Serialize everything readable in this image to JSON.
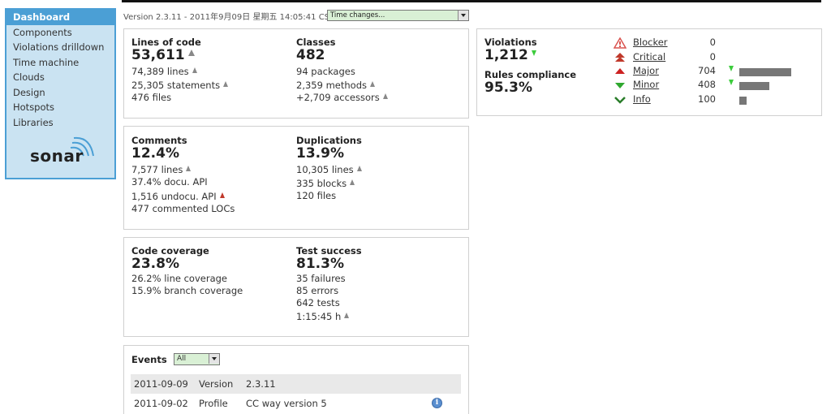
{
  "sidebar": {
    "items": [
      {
        "label": "Dashboard"
      },
      {
        "label": "Components"
      },
      {
        "label": "Violations drilldown"
      },
      {
        "label": "Time machine"
      },
      {
        "label": "Clouds"
      },
      {
        "label": "Design"
      },
      {
        "label": "Hotspots"
      },
      {
        "label": "Libraries"
      }
    ],
    "logo_text": "sonar"
  },
  "header": {
    "version_line": "Version 2.3.11 - 2011年9月09日 星期五 14:05:41 CST -",
    "time_select_value": "Time changes..."
  },
  "size": {
    "loc_label": "Lines of code",
    "loc_value": "53,611",
    "lines": "74,389 lines",
    "statements": "25,305 statements",
    "files": "476 files",
    "classes_label": "Classes",
    "classes_value": "482",
    "packages": "94 packages",
    "methods": "2,359 methods",
    "accessors": "+2,709 accessors"
  },
  "comments": {
    "comments_label": "Comments",
    "comments_value": "12.4%",
    "comment_lines": "7,577 lines",
    "docu_api": "37.4% docu. API",
    "undocu_api": "1,516 undocu. API",
    "commented_locs": "477 commented LOCs",
    "dup_label": "Duplications",
    "dup_value": "13.9%",
    "dup_lines": "10,305 lines",
    "dup_blocks": "335 blocks",
    "dup_files": "120 files"
  },
  "coverage": {
    "cov_label": "Code coverage",
    "cov_value": "23.8%",
    "line_cov": "26.2% line coverage",
    "branch_cov": "15.9% branch coverage",
    "test_label": "Test success",
    "test_value": "81.3%",
    "failures": "35 failures",
    "errors": "85 errors",
    "tests": "642 tests",
    "duration": "1:15:45 h"
  },
  "violations": {
    "label": "Violations",
    "value": "1,212",
    "compliance_label": "Rules compliance",
    "compliance_value": "95.3%",
    "severities": [
      {
        "name": "Blocker",
        "count": "0",
        "bar": 0,
        "color": "#d9534f"
      },
      {
        "name": "Critical",
        "count": "0",
        "bar": 0,
        "color": "#c0392b"
      },
      {
        "name": "Major",
        "count": "704",
        "bar": 1.0,
        "color": "#cc2222"
      },
      {
        "name": "Minor",
        "count": "408",
        "bar": 0.58,
        "color": "#2fa82f"
      },
      {
        "name": "Info",
        "count": "100",
        "bar": 0.14,
        "color": "#2a7d2a"
      }
    ]
  },
  "events": {
    "label": "Events",
    "filter_value": "All",
    "rows": [
      {
        "date": "2011-09-09",
        "category": "Version",
        "name": "2.3.11"
      },
      {
        "date": "2011-09-02",
        "category": "Profile",
        "name": "CC way version 5"
      }
    ]
  }
}
